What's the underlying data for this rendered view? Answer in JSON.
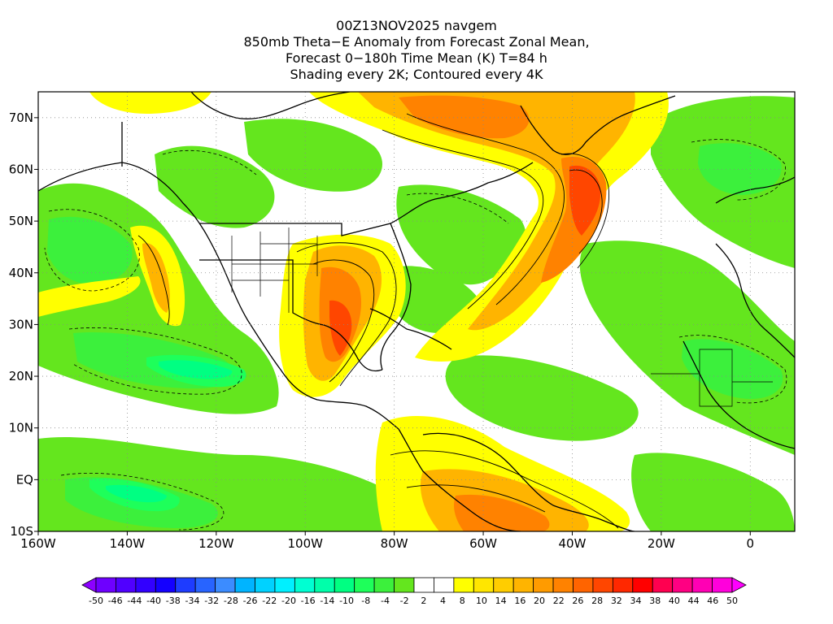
{
  "title": {
    "line1": "00Z13NOV2025 navgem",
    "line2": "850mb Theta−E Anomaly from Forecast Zonal Mean,",
    "line3": "Forecast 0−180h Time Mean (K) T=84 h",
    "line4": "Shading every 2K; Contoured every 4K"
  },
  "map": {
    "lon_ticks": [
      "160W",
      "140W",
      "120W",
      "100W",
      "80W",
      "60W",
      "40W",
      "20W",
      "0"
    ],
    "lon_values": [
      -160,
      -140,
      -120,
      -100,
      -80,
      -60,
      -40,
      -20,
      0
    ],
    "lat_ticks": [
      "70N",
      "60N",
      "50N",
      "40N",
      "30N",
      "20N",
      "10N",
      "EQ",
      "10S"
    ],
    "lat_values": [
      70,
      60,
      50,
      40,
      30,
      20,
      10,
      0,
      -10
    ],
    "lon_range": [
      -160,
      10
    ],
    "lat_range": [
      -10,
      75
    ],
    "grid": "dotted"
  },
  "colorbar": {
    "labels": [
      "-50",
      "-46",
      "-44",
      "-40",
      "-38",
      "-34",
      "-32",
      "-28",
      "-26",
      "-22",
      "-20",
      "-16",
      "-14",
      "-10",
      "-8",
      "-4",
      "-2",
      "2",
      "4",
      "8",
      "10",
      "14",
      "16",
      "20",
      "22",
      "26",
      "28",
      "32",
      "34",
      "38",
      "40",
      "44",
      "46",
      "50"
    ],
    "colors": [
      "#8c00ff",
      "#6e00ff",
      "#5000ff",
      "#3200ff",
      "#1400ff",
      "#1e3cff",
      "#2864ff",
      "#3c8cff",
      "#00b4ff",
      "#00d2ff",
      "#00f0ff",
      "#00ffd2",
      "#00ffaa",
      "#00ff82",
      "#1eff5a",
      "#3cf03c",
      "#64e61e",
      "#ffffff",
      "#ffffff",
      "#ffff00",
      "#ffe600",
      "#ffcd00",
      "#ffb400",
      "#ff9b00",
      "#ff8200",
      "#ff6400",
      "#ff4600",
      "#ff2800",
      "#ff0000",
      "#ff0050",
      "#ff0082",
      "#ff00b4",
      "#ff00dc",
      "#ff00ff"
    ]
  }
}
